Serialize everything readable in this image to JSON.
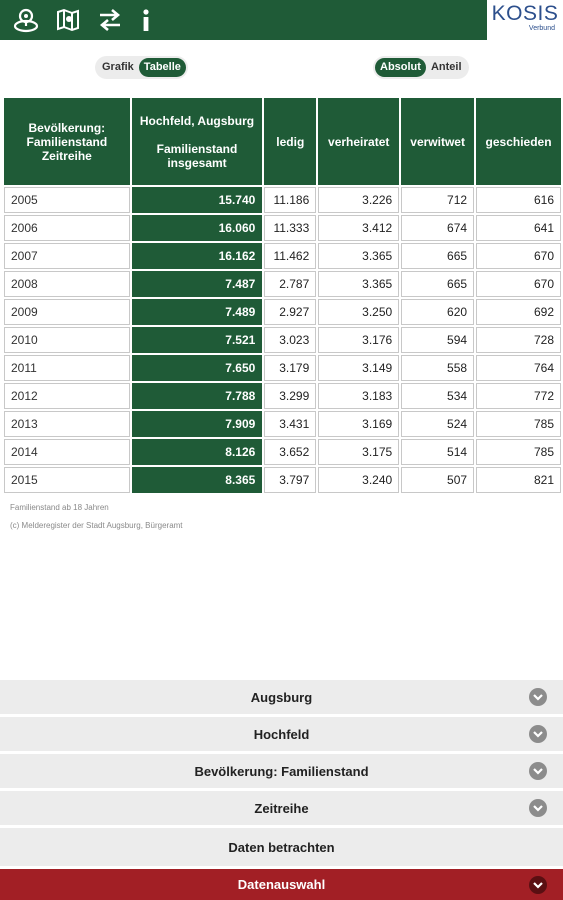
{
  "header": {
    "icons": [
      "map-marker-icon",
      "map-icon",
      "swap-arrows-icon",
      "info-icon"
    ],
    "logo_text": "KOSIS",
    "logo_sub": "Verbund"
  },
  "view_toggle": {
    "options": [
      "Grafik",
      "Tabelle"
    ],
    "active": "Tabelle"
  },
  "mode_toggle": {
    "options": [
      "Absolut",
      "Anteil"
    ],
    "active": "Absolut"
  },
  "table": {
    "headers": [
      "Bevölkerung: Familienstand Zeitreihe",
      "Hochfeld, Augsburg\n\nFamilienstand insgesamt",
      "ledig",
      "verheiratet",
      "verwitwet",
      "geschieden"
    ],
    "rows": [
      [
        "2005",
        "15.740",
        "11.186",
        "3.226",
        "712",
        "616"
      ],
      [
        "2006",
        "16.060",
        "11.333",
        "3.412",
        "674",
        "641"
      ],
      [
        "2007",
        "16.162",
        "11.462",
        "3.365",
        "665",
        "670"
      ],
      [
        "2008",
        "7.487",
        "2.787",
        "3.365",
        "665",
        "670"
      ],
      [
        "2009",
        "7.489",
        "2.927",
        "3.250",
        "620",
        "692"
      ],
      [
        "2010",
        "7.521",
        "3.023",
        "3.176",
        "594",
        "728"
      ],
      [
        "2011",
        "7.650",
        "3.179",
        "3.149",
        "558",
        "764"
      ],
      [
        "2012",
        "7.788",
        "3.299",
        "3.183",
        "534",
        "772"
      ],
      [
        "2013",
        "7.909",
        "3.431",
        "3.169",
        "524",
        "785"
      ],
      [
        "2014",
        "8.126",
        "3.652",
        "3.175",
        "514",
        "785"
      ],
      [
        "2015",
        "8.365",
        "3.797",
        "3.240",
        "507",
        "821"
      ]
    ]
  },
  "notes": {
    "footnote": "Familienstand ab 18 Jahren",
    "source": "(c) Melderegister der Stadt Augsburg, Bürgeramt"
  },
  "accordion": {
    "items": [
      "Augsburg",
      "Hochfeld",
      "Bevölkerung: Familienstand",
      "Zeitreihe"
    ],
    "view_label": "Daten betrachten",
    "select_label": "Datenauswahl"
  },
  "colors": {
    "primary_green": "#1f5b37",
    "accent_red": "#a21f25",
    "logo_blue": "#2c4f8c"
  }
}
